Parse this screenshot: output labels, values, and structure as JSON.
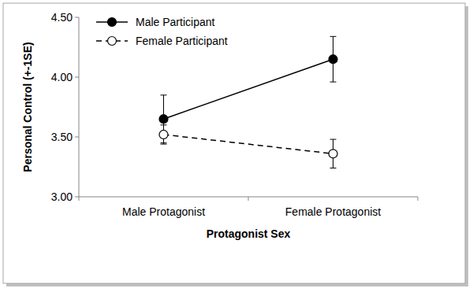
{
  "chart_data": {
    "type": "line",
    "categories": [
      "Male Protagonist",
      "Female Protagonist"
    ],
    "x_label": "Protagonist Sex",
    "y_label": "Personal Control (+-1SE)",
    "ylim": [
      3.0,
      4.5
    ],
    "yticks": [
      {
        "value": 3.0,
        "label": "3.00"
      },
      {
        "value": 3.5,
        "label": "3.50"
      },
      {
        "value": 4.0,
        "label": "4.00"
      },
      {
        "value": 4.5,
        "label": "4.50"
      }
    ],
    "grid": false,
    "legend": "upper-left",
    "series": [
      {
        "name": "Male Participant",
        "color": "#000000",
        "marker": "filled-circle",
        "line_style": "solid",
        "values": [
          3.65,
          4.15
        ],
        "errors": [
          0.2,
          0.19
        ]
      },
      {
        "name": "Female Participant",
        "color": "#000000",
        "marker": "open-circle",
        "line_style": "dashed",
        "values": [
          3.52,
          3.36
        ],
        "errors": [
          0.08,
          0.12
        ]
      }
    ]
  }
}
